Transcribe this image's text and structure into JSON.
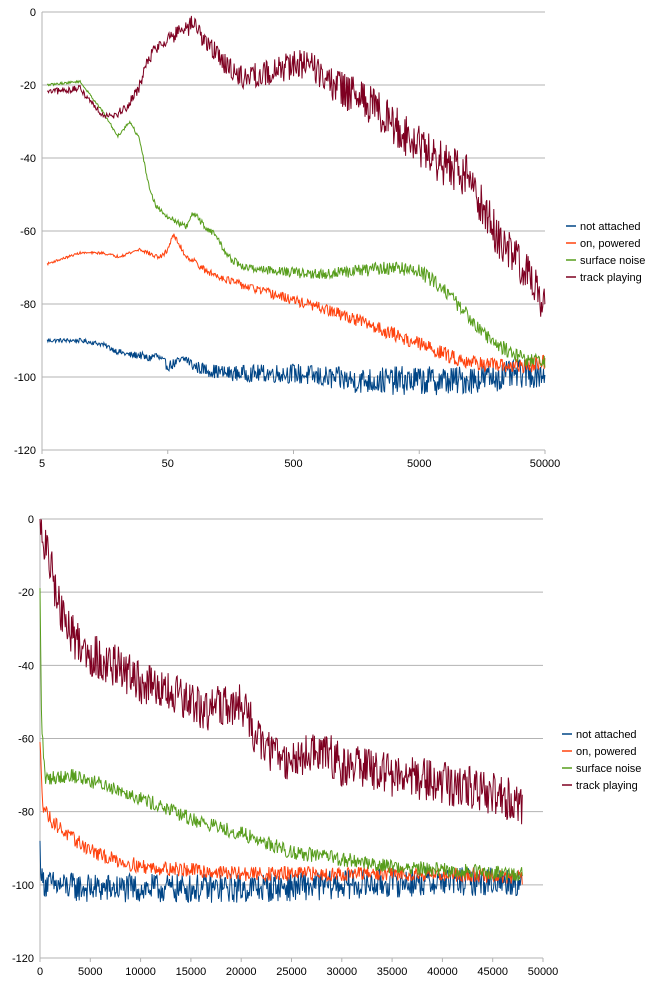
{
  "chart_data": [
    {
      "type": "line",
      "title": "",
      "xlabel": "",
      "ylabel": "",
      "xscale": "log",
      "xlim": [
        5,
        50000
      ],
      "ylim": [
        -120,
        0
      ],
      "grid": true,
      "legend_position": "right",
      "x_ticks": [
        "5",
        "50",
        "500",
        "5000",
        "50000"
      ],
      "y_ticks": [
        "0",
        "-20",
        "-40",
        "-60",
        "-80",
        "-100",
        "-120"
      ],
      "series": [
        {
          "name": "not attached",
          "color": "#004586",
          "noise": 4,
          "points": [
            [
              5.5,
              -90
            ],
            [
              10,
              -90
            ],
            [
              15,
              -91
            ],
            [
              20,
              -93
            ],
            [
              25,
              -94
            ],
            [
              30,
              -94
            ],
            [
              35,
              -95
            ],
            [
              40,
              -94
            ],
            [
              50,
              -97
            ],
            [
              60,
              -96
            ],
            [
              70,
              -95
            ],
            [
              80,
              -97
            ],
            [
              100,
              -98
            ],
            [
              150,
              -99
            ],
            [
              200,
              -99
            ],
            [
              300,
              -99
            ],
            [
              500,
              -99
            ],
            [
              800,
              -100
            ],
            [
              1500,
              -101
            ],
            [
              3000,
              -101
            ],
            [
              6000,
              -101
            ],
            [
              10000,
              -101
            ],
            [
              20000,
              -100
            ],
            [
              35000,
              -99
            ],
            [
              50000,
              -99
            ]
          ]
        },
        {
          "name": "on, powered",
          "color": "#ff420e",
          "noise": 2,
          "points": [
            [
              5.5,
              -69
            ],
            [
              10,
              -66
            ],
            [
              15,
              -66
            ],
            [
              20,
              -67
            ],
            [
              25,
              -66
            ],
            [
              30,
              -65
            ],
            [
              35,
              -66
            ],
            [
              40,
              -67
            ],
            [
              45,
              -67
            ],
            [
              50,
              -65
            ],
            [
              55,
              -61
            ],
            [
              60,
              -63
            ],
            [
              70,
              -67
            ],
            [
              80,
              -68
            ],
            [
              100,
              -71
            ],
            [
              200,
              -75
            ],
            [
              400,
              -78
            ],
            [
              800,
              -81
            ],
            [
              1500,
              -84
            ],
            [
              3000,
              -88
            ],
            [
              6000,
              -92
            ],
            [
              10000,
              -95
            ],
            [
              20000,
              -97
            ],
            [
              35000,
              -97
            ],
            [
              50000,
              -96
            ]
          ]
        },
        {
          "name": "surface noise",
          "color": "#579d1c",
          "noise": 2,
          "points": [
            [
              5.5,
              -20
            ],
            [
              10,
              -19
            ],
            [
              15,
              -27
            ],
            [
              20,
              -34
            ],
            [
              25,
              -30
            ],
            [
              30,
              -35
            ],
            [
              35,
              -47
            ],
            [
              40,
              -53
            ],
            [
              50,
              -56
            ],
            [
              70,
              -59
            ],
            [
              80,
              -55
            ],
            [
              100,
              -59
            ],
            [
              120,
              -61
            ],
            [
              150,
              -67
            ],
            [
              200,
              -70
            ],
            [
              400,
              -71
            ],
            [
              800,
              -72
            ],
            [
              1500,
              -71
            ],
            [
              3000,
              -70
            ],
            [
              5000,
              -71
            ],
            [
              8000,
              -76
            ],
            [
              12000,
              -83
            ],
            [
              20000,
              -91
            ],
            [
              35000,
              -95
            ],
            [
              50000,
              -96
            ]
          ]
        },
        {
          "name": "track playing",
          "color": "#7e0021",
          "noise": 6,
          "points": [
            [
              5.5,
              -22
            ],
            [
              10,
              -21
            ],
            [
              15,
              -28
            ],
            [
              20,
              -28
            ],
            [
              25,
              -25
            ],
            [
              30,
              -20
            ],
            [
              35,
              -13
            ],
            [
              40,
              -10
            ],
            [
              50,
              -7
            ],
            [
              60,
              -6
            ],
            [
              70,
              -5
            ],
            [
              80,
              -3
            ],
            [
              100,
              -8
            ],
            [
              150,
              -15
            ],
            [
              200,
              -18
            ],
            [
              300,
              -17
            ],
            [
              500,
              -14
            ],
            [
              800,
              -16
            ],
            [
              1000,
              -20
            ],
            [
              2000,
              -25
            ],
            [
              3000,
              -30
            ],
            [
              5000,
              -37
            ],
            [
              8000,
              -42
            ],
            [
              12000,
              -45
            ],
            [
              15000,
              -52
            ],
            [
              20000,
              -60
            ],
            [
              25000,
              -65
            ],
            [
              35000,
              -70
            ],
            [
              50000,
              -80
            ]
          ]
        }
      ]
    },
    {
      "type": "line",
      "title": "",
      "xlabel": "",
      "ylabel": "",
      "xscale": "linear",
      "xlim": [
        0,
        50000
      ],
      "ylim": [
        -120,
        0
      ],
      "grid": true,
      "legend_position": "right",
      "x_ticks": [
        "0",
        "5000",
        "10000",
        "15000",
        "20000",
        "25000",
        "30000",
        "35000",
        "40000",
        "45000",
        "50000"
      ],
      "y_ticks": [
        "0",
        "-20",
        "-40",
        "-60",
        "-80",
        "-100",
        "-120"
      ],
      "series": [
        {
          "name": "not attached",
          "color": "#004586",
          "noise": 4,
          "points": [
            [
              0,
              -90
            ],
            [
              200,
              -99
            ],
            [
              1000,
              -100
            ],
            [
              5000,
              -101
            ],
            [
              10000,
              -101
            ],
            [
              20000,
              -101
            ],
            [
              30000,
              -100
            ],
            [
              40000,
              -99
            ],
            [
              48000,
              -99
            ]
          ]
        },
        {
          "name": "on, powered",
          "color": "#ff420e",
          "noise": 2,
          "points": [
            [
              0,
              -62
            ],
            [
              300,
              -78
            ],
            [
              1000,
              -82
            ],
            [
              3000,
              -87
            ],
            [
              6000,
              -92
            ],
            [
              10000,
              -95
            ],
            [
              15000,
              -96
            ],
            [
              20000,
              -97
            ],
            [
              30000,
              -97
            ],
            [
              40000,
              -97
            ],
            [
              48000,
              -98
            ]
          ]
        },
        {
          "name": "surface noise",
          "color": "#579d1c",
          "noise": 2,
          "points": [
            [
              0,
              -20
            ],
            [
              150,
              -55
            ],
            [
              500,
              -71
            ],
            [
              3000,
              -70
            ],
            [
              8000,
              -74
            ],
            [
              15000,
              -82
            ],
            [
              20000,
              -86
            ],
            [
              25000,
              -91
            ],
            [
              30000,
              -93
            ],
            [
              35000,
              -95
            ],
            [
              40000,
              -96
            ],
            [
              48000,
              -97
            ]
          ]
        },
        {
          "name": "track playing",
          "color": "#7e0021",
          "noise": 6,
          "points": [
            [
              0,
              -3
            ],
            [
              1000,
              -12
            ],
            [
              2000,
              -25
            ],
            [
              3000,
              -31
            ],
            [
              5000,
              -37
            ],
            [
              8000,
              -41
            ],
            [
              10000,
              -45
            ],
            [
              13000,
              -48
            ],
            [
              16000,
              -52
            ],
            [
              20000,
              -51
            ],
            [
              21000,
              -56
            ],
            [
              22000,
              -62
            ],
            [
              25000,
              -66
            ],
            [
              28000,
              -63
            ],
            [
              30000,
              -67
            ],
            [
              35000,
              -70
            ],
            [
              40000,
              -72
            ],
            [
              45000,
              -75
            ],
            [
              48000,
              -78
            ]
          ]
        }
      ]
    }
  ]
}
